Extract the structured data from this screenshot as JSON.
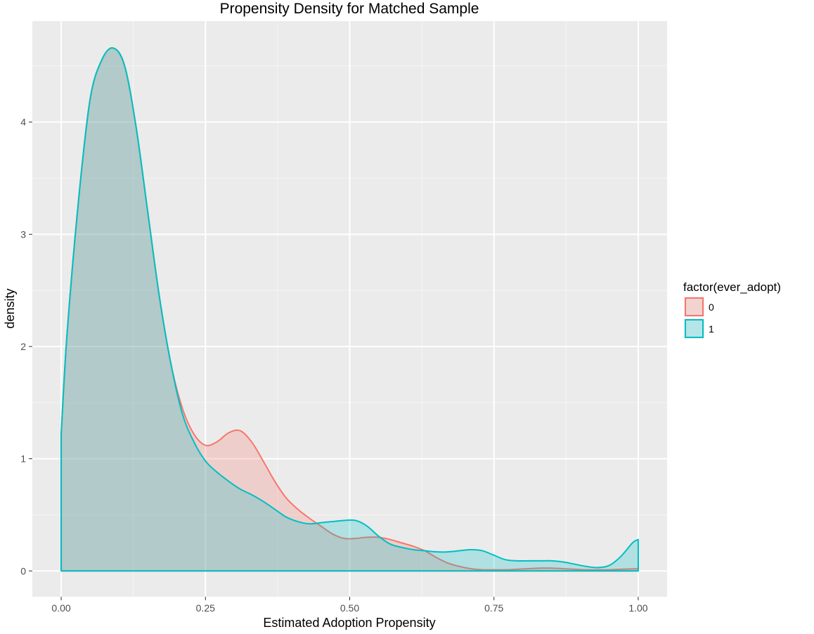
{
  "chart_data": {
    "type": "area",
    "title": "Propensity Density for Matched Sample",
    "xlabel": "Estimated Adoption Propensity",
    "ylabel": "density",
    "xlim": [
      -0.05,
      1.05
    ],
    "ylim": [
      -0.23,
      4.9
    ],
    "x_ticks": [
      0.0,
      0.25,
      0.5,
      0.75,
      1.0
    ],
    "x_tick_labels": [
      "0.00",
      "0.25",
      "0.50",
      "0.75",
      "1.00"
    ],
    "y_ticks": [
      0,
      1,
      2,
      3,
      4
    ],
    "y_tick_labels": [
      "0",
      "1",
      "2",
      "3",
      "4"
    ],
    "grid": true,
    "legend": {
      "title": "factor(ever_adopt)",
      "position": "right"
    },
    "series": [
      {
        "name": "0",
        "color": "#F8766D",
        "fill": "rgba(248,118,109,0.25)",
        "x": [
          0.0,
          0.01,
          0.03,
          0.05,
          0.07,
          0.09,
          0.11,
          0.13,
          0.15,
          0.17,
          0.19,
          0.21,
          0.23,
          0.25,
          0.27,
          0.29,
          0.31,
          0.33,
          0.35,
          0.37,
          0.39,
          0.41,
          0.43,
          0.45,
          0.47,
          0.49,
          0.51,
          0.53,
          0.55,
          0.57,
          0.59,
          0.61,
          0.63,
          0.65,
          0.67,
          0.69,
          0.71,
          0.73,
          0.75,
          0.77,
          0.79,
          0.81,
          0.83,
          0.85,
          0.87,
          0.89,
          0.91,
          0.93,
          0.95,
          0.97,
          1.0
        ],
        "y": [
          1.22,
          2.1,
          3.3,
          4.2,
          4.55,
          4.66,
          4.5,
          3.95,
          3.2,
          2.45,
          1.85,
          1.45,
          1.22,
          1.12,
          1.15,
          1.23,
          1.25,
          1.15,
          0.98,
          0.8,
          0.65,
          0.55,
          0.47,
          0.4,
          0.33,
          0.29,
          0.29,
          0.3,
          0.3,
          0.28,
          0.25,
          0.22,
          0.18,
          0.12,
          0.07,
          0.04,
          0.02,
          0.01,
          0.01,
          0.01,
          0.015,
          0.02,
          0.025,
          0.025,
          0.02,
          0.015,
          0.01,
          0.01,
          0.01,
          0.015,
          0.02
        ]
      },
      {
        "name": "1",
        "color": "#00BFC4",
        "fill": "rgba(0,191,196,0.25)",
        "x": [
          0.0,
          0.01,
          0.03,
          0.05,
          0.07,
          0.09,
          0.11,
          0.13,
          0.15,
          0.17,
          0.19,
          0.21,
          0.23,
          0.25,
          0.27,
          0.29,
          0.31,
          0.33,
          0.35,
          0.37,
          0.39,
          0.41,
          0.43,
          0.45,
          0.47,
          0.49,
          0.51,
          0.53,
          0.55,
          0.57,
          0.59,
          0.61,
          0.63,
          0.65,
          0.67,
          0.69,
          0.71,
          0.73,
          0.75,
          0.77,
          0.79,
          0.81,
          0.83,
          0.85,
          0.87,
          0.89,
          0.91,
          0.93,
          0.95,
          0.97,
          0.99,
          1.0
        ],
        "y": [
          1.22,
          2.1,
          3.3,
          4.2,
          4.55,
          4.66,
          4.5,
          3.95,
          3.2,
          2.45,
          1.85,
          1.4,
          1.15,
          0.98,
          0.88,
          0.8,
          0.73,
          0.68,
          0.62,
          0.55,
          0.48,
          0.44,
          0.42,
          0.43,
          0.44,
          0.45,
          0.45,
          0.4,
          0.31,
          0.24,
          0.21,
          0.19,
          0.18,
          0.17,
          0.17,
          0.18,
          0.19,
          0.18,
          0.14,
          0.1,
          0.09,
          0.09,
          0.09,
          0.09,
          0.08,
          0.06,
          0.04,
          0.03,
          0.05,
          0.13,
          0.25,
          0.28
        ]
      }
    ]
  }
}
